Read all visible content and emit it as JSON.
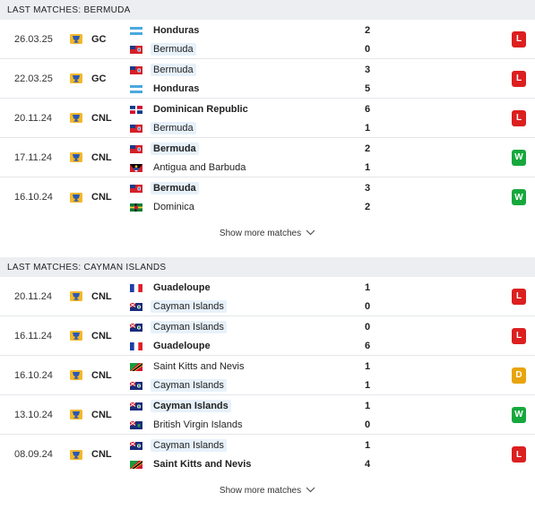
{
  "sections": [
    {
      "title": "LAST MATCHES: BERMUDA",
      "show_more": "Show more matches",
      "matches": [
        {
          "date": "26.03.25",
          "comp": "GC",
          "home": {
            "name": "Honduras",
            "flag": "honduras",
            "bold": true,
            "hl": false
          },
          "away": {
            "name": "Bermuda",
            "flag": "bermuda",
            "bold": false,
            "hl": true
          },
          "score_home": "2",
          "score_away": "0",
          "result": "L"
        },
        {
          "date": "22.03.25",
          "comp": "GC",
          "home": {
            "name": "Bermuda",
            "flag": "bermuda",
            "bold": false,
            "hl": true
          },
          "away": {
            "name": "Honduras",
            "flag": "honduras",
            "bold": true,
            "hl": false
          },
          "score_home": "3",
          "score_away": "5",
          "result": "L"
        },
        {
          "date": "20.11.24",
          "comp": "CNL",
          "home": {
            "name": "Dominican Republic",
            "flag": "dominican-republic",
            "bold": true,
            "hl": false
          },
          "away": {
            "name": "Bermuda",
            "flag": "bermuda",
            "bold": false,
            "hl": true
          },
          "score_home": "6",
          "score_away": "1",
          "result": "L"
        },
        {
          "date": "17.11.24",
          "comp": "CNL",
          "home": {
            "name": "Bermuda",
            "flag": "bermuda",
            "bold": true,
            "hl": true
          },
          "away": {
            "name": "Antigua and Barbuda",
            "flag": "antigua",
            "bold": false,
            "hl": false
          },
          "score_home": "2",
          "score_away": "1",
          "result": "W"
        },
        {
          "date": "16.10.24",
          "comp": "CNL",
          "home": {
            "name": "Bermuda",
            "flag": "bermuda",
            "bold": true,
            "hl": true
          },
          "away": {
            "name": "Dominica",
            "flag": "dominica",
            "bold": false,
            "hl": false
          },
          "score_home": "3",
          "score_away": "2",
          "result": "W"
        }
      ]
    },
    {
      "title": "LAST MATCHES: CAYMAN ISLANDS",
      "show_more": "Show more matches",
      "matches": [
        {
          "date": "20.11.24",
          "comp": "CNL",
          "home": {
            "name": "Guadeloupe",
            "flag": "france",
            "bold": true,
            "hl": false
          },
          "away": {
            "name": "Cayman Islands",
            "flag": "cayman",
            "bold": false,
            "hl": true
          },
          "score_home": "1",
          "score_away": "0",
          "result": "L"
        },
        {
          "date": "16.11.24",
          "comp": "CNL",
          "home": {
            "name": "Cayman Islands",
            "flag": "cayman",
            "bold": false,
            "hl": true
          },
          "away": {
            "name": "Guadeloupe",
            "flag": "france",
            "bold": true,
            "hl": false
          },
          "score_home": "0",
          "score_away": "6",
          "result": "L"
        },
        {
          "date": "16.10.24",
          "comp": "CNL",
          "home": {
            "name": "Saint Kitts and Nevis",
            "flag": "st-kitts",
            "bold": false,
            "hl": false
          },
          "away": {
            "name": "Cayman Islands",
            "flag": "cayman",
            "bold": false,
            "hl": true
          },
          "score_home": "1",
          "score_away": "1",
          "result": "D"
        },
        {
          "date": "13.10.24",
          "comp": "CNL",
          "home": {
            "name": "Cayman Islands",
            "flag": "cayman",
            "bold": true,
            "hl": true
          },
          "away": {
            "name": "British Virgin Islands",
            "flag": "bvi",
            "bold": false,
            "hl": false
          },
          "score_home": "1",
          "score_away": "0",
          "result": "W"
        },
        {
          "date": "08.09.24",
          "comp": "CNL",
          "home": {
            "name": "Cayman Islands",
            "flag": "cayman",
            "bold": false,
            "hl": true
          },
          "away": {
            "name": "Saint Kitts and Nevis",
            "flag": "st-kitts",
            "bold": true,
            "hl": false
          },
          "score_home": "1",
          "score_away": "4",
          "result": "L"
        }
      ]
    }
  ],
  "colors": {
    "loss": "#dc1f1f",
    "win": "#17a83d",
    "draw": "#e8a40c",
    "highlight": "#e7f1fa",
    "header_bg": "#eceef1"
  }
}
